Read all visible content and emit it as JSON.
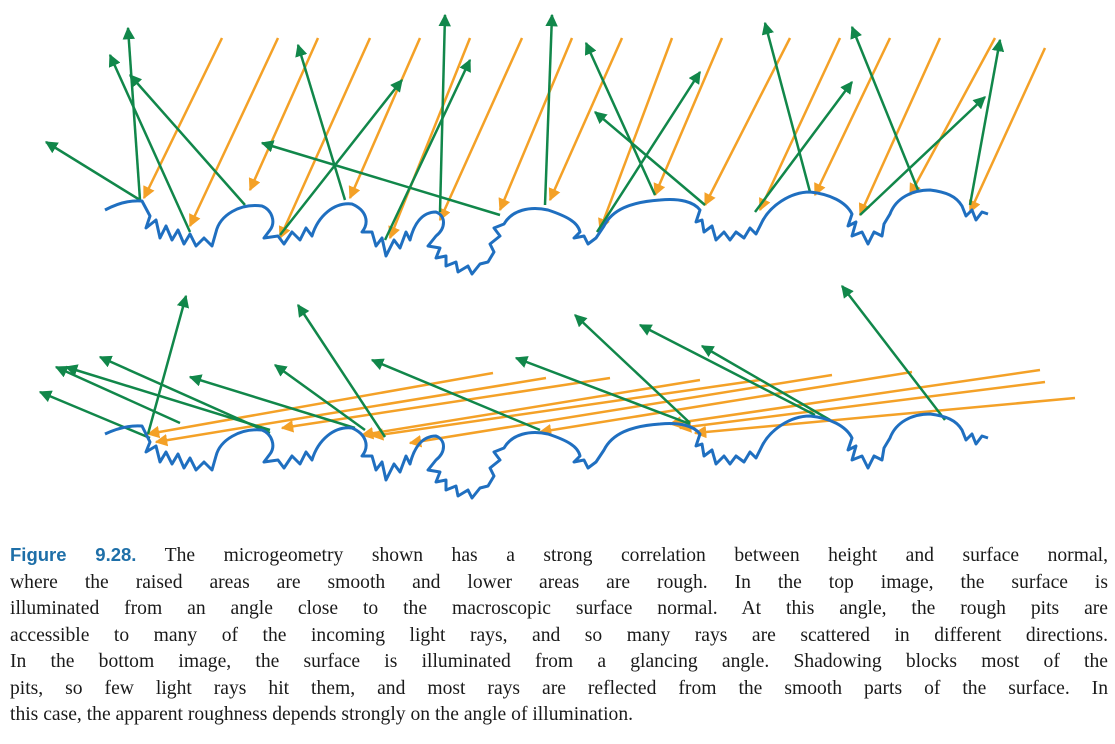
{
  "figure": {
    "colors": {
      "surface": "#1f6fc0",
      "incoming_light": "#f4a127",
      "reflected_light": "#11874a"
    }
  },
  "caption": {
    "label": "Figure 9.28.",
    "lines": [
      " The microgeometry shown has a strong correlation between height and surface normal,",
      "where the raised areas are smooth and lower areas are rough.  In the top image, the surface is",
      "illuminated from an angle close to the macroscopic surface normal. At this angle, the rough pits are",
      "accessible to many of the incoming light rays, and so many rays are scattered in different directions.",
      "In the bottom image, the surface is illuminated from a glancing angle. Shadowing blocks most of the",
      "pits, so few light rays hit them, and most rays are reflected from the smooth parts of the surface. In",
      "this case, the apparent roughness depends strongly on the angle of illumination."
    ]
  }
}
